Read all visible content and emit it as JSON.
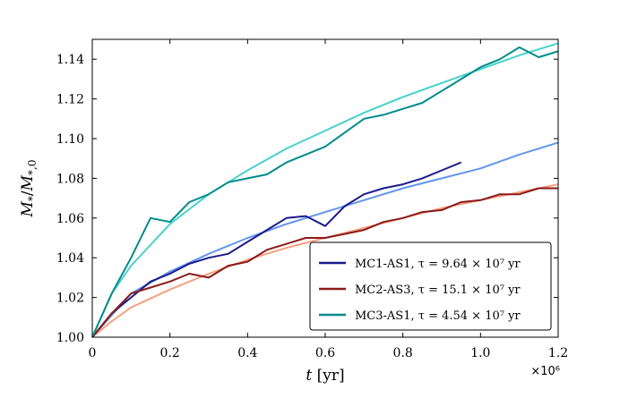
{
  "chart_data": {
    "type": "line",
    "xlabel": "t [yr]",
    "ylabel": "M*/M*,0",
    "x_offset_label": "×10⁶",
    "xlim": [
      0,
      1.2
    ],
    "ylim": [
      1.0,
      1.15
    ],
    "x_ticks": [
      0,
      0.2,
      0.4,
      0.6,
      0.8,
      1.0,
      1.2
    ],
    "x_tick_labels": [
      "0",
      "0.2",
      "0.4",
      "0.6",
      "0.8",
      "1.0",
      "1.2"
    ],
    "y_ticks": [
      1.0,
      1.02,
      1.04,
      1.06,
      1.08,
      1.1,
      1.12,
      1.14
    ],
    "y_tick_labels": [
      "1.00",
      "1.02",
      "1.04",
      "1.06",
      "1.08",
      "1.10",
      "1.12",
      "1.14"
    ],
    "grid": false,
    "legend_position": "bottom-right",
    "series": [
      {
        "name": "MC1-AS1",
        "tau_label": "τ = 9.64 × 10⁷ yr",
        "color": "#1a1a8c",
        "fit_color": "#6495ed",
        "x": [
          0.0,
          0.05,
          0.1,
          0.15,
          0.2,
          0.25,
          0.3,
          0.35,
          0.4,
          0.45,
          0.5,
          0.55,
          0.6,
          0.65,
          0.7,
          0.75,
          0.8,
          0.85,
          0.9,
          0.95
        ],
        "y": [
          1.0,
          1.012,
          1.02,
          1.028,
          1.032,
          1.037,
          1.04,
          1.042,
          1.048,
          1.054,
          1.06,
          1.061,
          1.056,
          1.066,
          1.072,
          1.075,
          1.077,
          1.08,
          1.084,
          1.088
        ],
        "fit_x": [
          0.0,
          0.1,
          0.2,
          0.3,
          0.4,
          0.5,
          0.6,
          0.7,
          0.8,
          0.9,
          1.0,
          1.1,
          1.2
        ],
        "fit_y": [
          1.0,
          1.022,
          1.033,
          1.042,
          1.05,
          1.057,
          1.063,
          1.069,
          1.075,
          1.08,
          1.085,
          1.092,
          1.098
        ]
      },
      {
        "name": "MC2-AS3",
        "tau_label": "τ = 15.1 × 10⁷ yr",
        "color": "#8b1a1a",
        "fit_color": "#f4a080",
        "x": [
          0.0,
          0.05,
          0.1,
          0.15,
          0.2,
          0.25,
          0.3,
          0.35,
          0.4,
          0.45,
          0.5,
          0.55,
          0.6,
          0.65,
          0.7,
          0.75,
          0.8,
          0.85,
          0.9,
          0.95,
          1.0,
          1.05,
          1.1,
          1.15,
          1.2
        ],
        "y": [
          1.0,
          1.012,
          1.022,
          1.025,
          1.028,
          1.032,
          1.03,
          1.036,
          1.038,
          1.044,
          1.047,
          1.05,
          1.05,
          1.052,
          1.054,
          1.058,
          1.06,
          1.063,
          1.064,
          1.068,
          1.069,
          1.072,
          1.072,
          1.075,
          1.075
        ],
        "fit_x": [
          0.0,
          0.05,
          0.1,
          0.2,
          0.3,
          0.4,
          0.5,
          0.6,
          0.7,
          0.8,
          0.9,
          1.0,
          1.1,
          1.2
        ],
        "fit_y": [
          1.0,
          1.008,
          1.015,
          1.024,
          1.032,
          1.039,
          1.045,
          1.05,
          1.055,
          1.06,
          1.065,
          1.069,
          1.073,
          1.077
        ]
      },
      {
        "name": "MC3-AS1",
        "tau_label": "τ = 4.54 × 10⁷ yr",
        "color": "#008b8b",
        "fit_color": "#48d1cc",
        "x": [
          0.0,
          0.05,
          0.1,
          0.15,
          0.2,
          0.25,
          0.3,
          0.35,
          0.4,
          0.45,
          0.5,
          0.55,
          0.6,
          0.65,
          0.7,
          0.75,
          0.8,
          0.85,
          0.9,
          0.95,
          1.0,
          1.05,
          1.1,
          1.15,
          1.2
        ],
        "y": [
          1.0,
          1.022,
          1.04,
          1.06,
          1.058,
          1.068,
          1.072,
          1.078,
          1.08,
          1.082,
          1.088,
          1.092,
          1.096,
          1.103,
          1.11,
          1.112,
          1.115,
          1.118,
          1.124,
          1.13,
          1.136,
          1.14,
          1.146,
          1.141,
          1.144
        ],
        "fit_x": [
          0.0,
          0.05,
          0.1,
          0.2,
          0.3,
          0.4,
          0.5,
          0.6,
          0.7,
          0.8,
          0.9,
          1.0,
          1.1,
          1.2
        ],
        "fit_y": [
          1.0,
          1.022,
          1.036,
          1.057,
          1.072,
          1.084,
          1.095,
          1.104,
          1.113,
          1.121,
          1.128,
          1.135,
          1.142,
          1.148
        ]
      }
    ]
  }
}
